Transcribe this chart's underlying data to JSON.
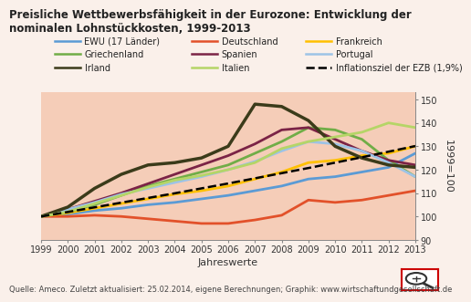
{
  "title": "Preisliche Wettbewerbsfähigkeit in der Eurozone: Entwicklung der nominalen Lohnstückkosten, 1999-2013",
  "years": [
    1999,
    2000,
    2001,
    2002,
    2003,
    2004,
    2005,
    2006,
    2007,
    2008,
    2009,
    2010,
    2011,
    2012,
    2013
  ],
  "series": [
    {
      "name": "EWU (17 Länder)",
      "color": "#5b9bd5",
      "values": [
        100,
        101,
        102.5,
        103.5,
        105,
        106,
        107.5,
        109,
        111,
        113,
        116,
        117,
        119,
        121,
        127
      ],
      "lw": 2.0,
      "dashed": false
    },
    {
      "name": "Deutschland",
      "color": "#e2512a",
      "values": [
        100,
        100,
        100.5,
        100,
        99,
        98,
        97,
        97,
        98.5,
        100.5,
        107,
        106,
        107,
        109,
        111
      ],
      "lw": 2.0,
      "dashed": false
    },
    {
      "name": "Frankreich",
      "color": "#ffc000",
      "values": [
        100,
        101.5,
        103.5,
        105.5,
        107.5,
        109.5,
        111,
        113,
        116,
        119,
        123,
        124,
        126,
        127,
        130
      ],
      "lw": 2.0,
      "dashed": false
    },
    {
      "name": "Griechenland",
      "color": "#70ad47",
      "values": [
        100,
        102,
        105,
        109,
        113,
        116,
        119,
        122,
        127,
        132,
        138,
        137,
        133,
        124,
        117
      ],
      "lw": 2.0,
      "dashed": false
    },
    {
      "name": "Spanien",
      "color": "#7b2346",
      "values": [
        100,
        103,
        106.5,
        110,
        114,
        118,
        122,
        126,
        131,
        137,
        138,
        133,
        128,
        124,
        122
      ],
      "lw": 2.0,
      "dashed": false
    },
    {
      "name": "Portugal",
      "color": "#9dc3e6",
      "values": [
        100,
        103,
        106,
        109.5,
        112,
        114.5,
        117,
        120,
        123.5,
        128,
        132,
        131,
        128,
        123,
        117
      ],
      "lw": 2.0,
      "dashed": false
    },
    {
      "name": "Irland",
      "color": "#3b3b1a",
      "values": [
        100,
        104,
        112,
        118,
        122,
        123,
        125,
        130,
        148,
        147,
        141,
        130,
        125,
        122,
        121
      ],
      "lw": 2.5,
      "dashed": false
    },
    {
      "name": "Italien",
      "color": "#b5d567",
      "values": [
        100,
        102,
        105.5,
        109,
        112.5,
        115.5,
        117.5,
        120,
        123,
        129,
        132,
        134,
        136,
        140,
        138
      ],
      "lw": 2.0,
      "dashed": false
    },
    {
      "name": "Inflationsziel der EZB (1,9%)",
      "color": "#000000",
      "values": [
        100,
        101.9,
        103.9,
        105.9,
        107.9,
        109.9,
        112.0,
        114.1,
        116.3,
        118.5,
        120.7,
        123.0,
        125.3,
        127.7,
        130.1
      ],
      "lw": 1.8,
      "dashed": true
    }
  ],
  "ylim": [
    90,
    153
  ],
  "yticks": [
    90,
    100,
    110,
    120,
    130,
    140,
    150
  ],
  "xlabel": "Jahreswerte",
  "ylabel": "1999=100",
  "background_color": "#faf0ea",
  "plot_bg_color": "#f5cdb8",
  "source_text": "Quelle: Ameco. Zuletzt aktualisiert: 25.02.2014, eigene Berechnungen; Graphik: www.wirtschaftundgesellschaft.de",
  "title_fontsize": 8.5,
  "legend_fontsize": 7,
  "axis_fontsize": 7,
  "legend_order": [
    [
      "EWU (17 Länder)",
      "Deutschland",
      "Frankreich"
    ],
    [
      "Griechenland",
      "Spanien",
      "Portugal"
    ],
    [
      "Irland",
      "Italien",
      "Inflationsziel der EZB (1,9%)"
    ]
  ]
}
